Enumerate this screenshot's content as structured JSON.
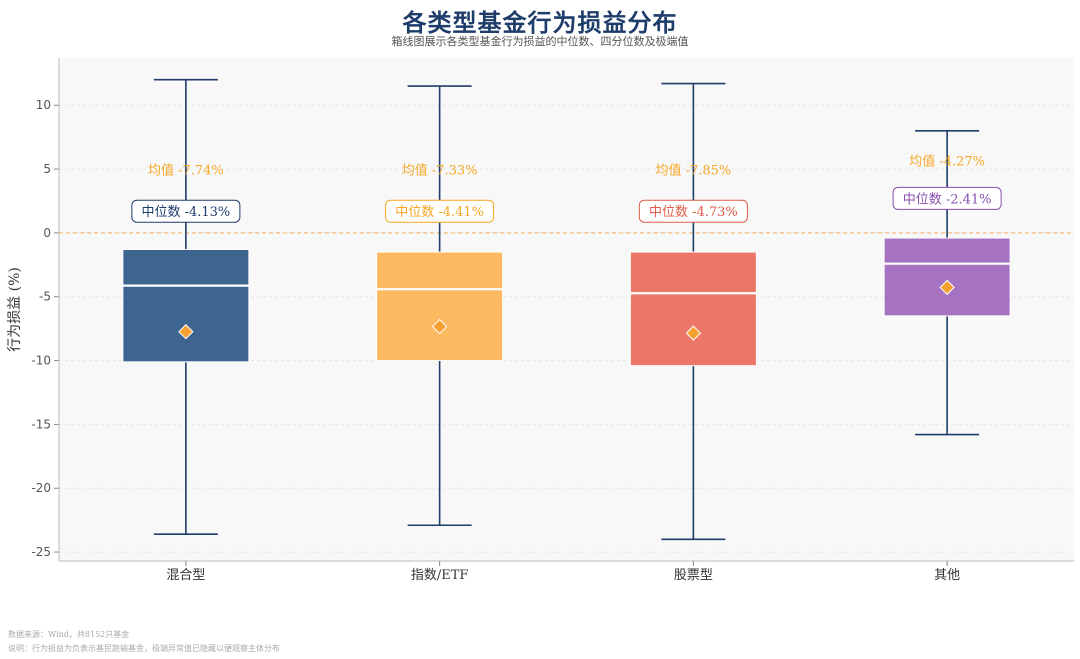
{
  "chart_data": {
    "type": "box",
    "title": "各类型基金行为损益分布",
    "subtitle": "箱线图展示各类型基金行为损益的中位数、四分位数及极端值",
    "ylabel": "行为损益 (%)",
    "xlabel": "",
    "ylim": [
      -25.7,
      13.7
    ],
    "yticks": [
      -25,
      -20,
      -15,
      -10,
      -5,
      0,
      5,
      10
    ],
    "grid": true,
    "reference_line_y": 0,
    "categories": [
      "混合型",
      "指数/ETF",
      "股票型",
      "其他"
    ],
    "boxes": [
      {
        "category": "混合型",
        "whisker_low": -23.6,
        "q1": -10.1,
        "median": -4.13,
        "q3": -1.3,
        "whisker_high": 12.0,
        "mean": -7.74,
        "color": "#3e6490",
        "mean_label": "均值 -7.74%",
        "median_label": "中位数 -4.13%",
        "label_color": "#1f3d6b"
      },
      {
        "category": "指数/ETF",
        "whisker_low": -22.9,
        "q1": -10.0,
        "median": -4.41,
        "q3": -1.5,
        "whisker_high": 11.5,
        "mean": -7.33,
        "color": "#fdb961",
        "mean_label": "均值 -7.33%",
        "median_label": "中位数 -4.41%",
        "label_color": "#f5a623"
      },
      {
        "category": "股票型",
        "whisker_low": -24.0,
        "q1": -10.4,
        "median": -4.73,
        "q3": -1.5,
        "whisker_high": 11.7,
        "mean": -7.85,
        "color": "#ec7769",
        "mean_label": "均值 -7.85%",
        "median_label": "中位数 -4.73%",
        "label_color": "#e05a4a"
      },
      {
        "category": "其他",
        "whisker_low": -15.8,
        "q1": -6.5,
        "median": -2.41,
        "q3": -0.4,
        "whisker_high": 8.0,
        "mean": -4.27,
        "color": "#a673c2",
        "mean_label": "均值 -4.27%",
        "median_label": "中位数 -2.41%",
        "label_color": "#8a4fb0"
      }
    ],
    "colors": {
      "whisker": "#1f3d6b",
      "mean_marker": "#f5a030",
      "mean_label": "#f5a623",
      "median_line": "#ffffff",
      "ref_line": "#f5b060"
    }
  },
  "footnotes": {
    "source": "数据来源：Wind，共8152只基金",
    "note": "说明：行为损益为负表示基民跑输基金，极端异常值已隐藏以便观察主体分布"
  }
}
